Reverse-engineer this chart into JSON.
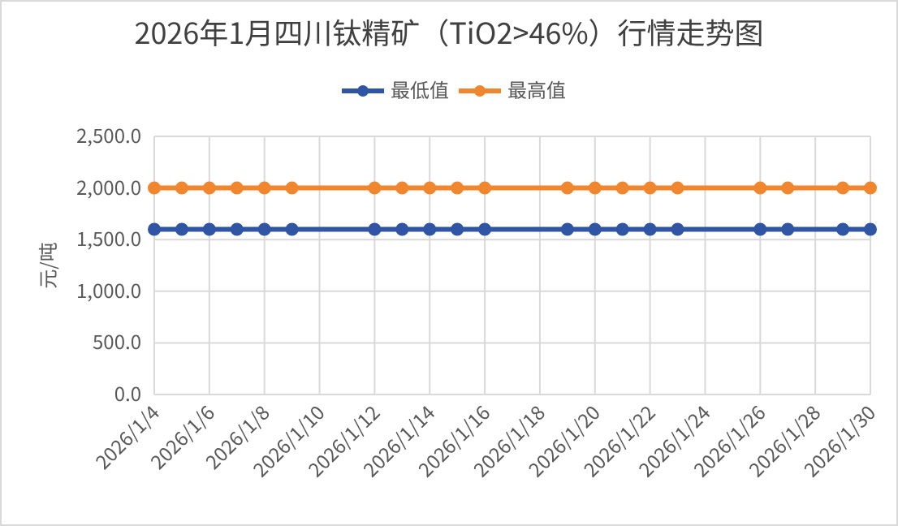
{
  "chart_data": {
    "type": "line",
    "title": "2026年1月四川钛精矿（TiO2>46%）行情走势图",
    "ylabel": "元/吨",
    "x": [
      "2026-01-04",
      "2026-01-05",
      "2026-01-06",
      "2026-01-07",
      "2026-01-08",
      "2026-01-09",
      "2026-01-12",
      "2026-01-13",
      "2026-01-14",
      "2026-01-15",
      "2026-01-16",
      "2026-01-19",
      "2026-01-20",
      "2026-01-21",
      "2026-01-22",
      "2026-01-23",
      "2026-01-26",
      "2026-01-27",
      "2026-01-29",
      "2026-01-30"
    ],
    "series": [
      {
        "name": "最低值",
        "color": "#2f55a4",
        "values": [
          1600,
          1600,
          1600,
          1600,
          1600,
          1600,
          1600,
          1600,
          1600,
          1600,
          1600,
          1600,
          1600,
          1600,
          1600,
          1600,
          1600,
          1600,
          1600,
          1600
        ]
      },
      {
        "name": "最高值",
        "color": "#f0862e",
        "values": [
          2000,
          2000,
          2000,
          2000,
          2000,
          2000,
          2000,
          2000,
          2000,
          2000,
          2000,
          2000,
          2000,
          2000,
          2000,
          2000,
          2000,
          2000,
          2000,
          2000
        ]
      }
    ],
    "xlim": [
      "2026-01-04",
      "2026-01-30"
    ],
    "xticks": [
      {
        "value": "2026-01-04",
        "label": "2026/1/4"
      },
      {
        "value": "2026-01-06",
        "label": "2026/1/6"
      },
      {
        "value": "2026-01-08",
        "label": "2026/1/8"
      },
      {
        "value": "2026-01-10",
        "label": "2026/1/10"
      },
      {
        "value": "2026-01-12",
        "label": "2026/1/12"
      },
      {
        "value": "2026-01-14",
        "label": "2026/1/14"
      },
      {
        "value": "2026-01-16",
        "label": "2026/1/16"
      },
      {
        "value": "2026-01-18",
        "label": "2026/1/18"
      },
      {
        "value": "2026-01-20",
        "label": "2026/1/20"
      },
      {
        "value": "2026-01-22",
        "label": "2026/1/22"
      },
      {
        "value": "2026-01-24",
        "label": "2026/1/24"
      },
      {
        "value": "2026-01-26",
        "label": "2026/1/26"
      },
      {
        "value": "2026-01-28",
        "label": "2026/1/28"
      },
      {
        "value": "2026-01-30",
        "label": "2026/1/30"
      }
    ],
    "ylim": [
      0,
      2500
    ],
    "yticks": [
      {
        "value": 0,
        "label": "0.0"
      },
      {
        "value": 500,
        "label": "500.0"
      },
      {
        "value": 1000,
        "label": "1,000.0"
      },
      {
        "value": 1500,
        "label": "1,500.0"
      },
      {
        "value": 2000,
        "label": "2,000.0"
      },
      {
        "value": 2500,
        "label": "2,500.0"
      }
    ],
    "grid": true,
    "legend": "top",
    "marker": "circle",
    "line_style": "solid"
  }
}
